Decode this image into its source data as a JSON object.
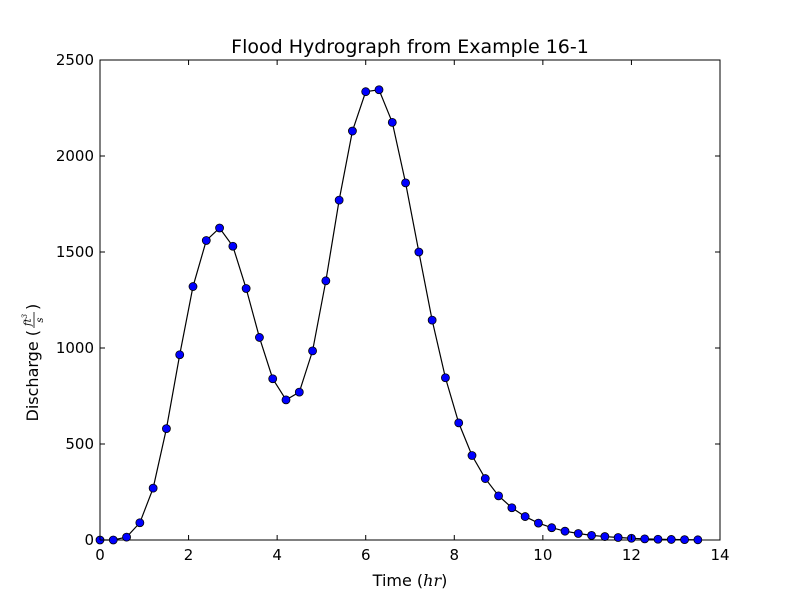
{
  "chart_data": {
    "type": "line",
    "title": "Flood Hydrograph from Example 16-1",
    "xlabel": {
      "prefix": "Time (",
      "math": "hr",
      "suffix": ")"
    },
    "ylabel": {
      "prefix": "Discharge (",
      "num": "ft",
      "exp": "3",
      "den": "s",
      "suffix": ")"
    },
    "xlim": [
      0,
      14
    ],
    "ylim": [
      0,
      2500
    ],
    "xticks": [
      "0",
      "2",
      "4",
      "6",
      "8",
      "10",
      "12",
      "14"
    ],
    "yticks": [
      "0",
      "500",
      "1000",
      "1500",
      "2000",
      "2500"
    ],
    "grid": false,
    "series": [
      {
        "line_color": "#000000",
        "marker_color": "#0000ff",
        "x": [
          0,
          0.3,
          0.6,
          0.9,
          1.2,
          1.5,
          1.8,
          2.1,
          2.4,
          2.7,
          3.0,
          3.3,
          3.6,
          3.9,
          4.2,
          4.5,
          4.8,
          5.1,
          5.4,
          5.7,
          6.0,
          6.3,
          6.6,
          6.9,
          7.2,
          7.5,
          7.8,
          8.1,
          8.4,
          8.7,
          9.0,
          9.3,
          9.6,
          9.9,
          10.2,
          10.5,
          10.8,
          11.1,
          11.4,
          11.7,
          12.0,
          12.3,
          12.6,
          12.9,
          13.2,
          13.5
        ],
        "y": [
          0,
          0,
          15,
          90,
          270,
          580,
          965,
          1320,
          1560,
          1625,
          1530,
          1310,
          1055,
          840,
          730,
          770,
          985,
          1350,
          1770,
          2130,
          2335,
          2345,
          2175,
          1860,
          1500,
          1145,
          845,
          610,
          440,
          320,
          230,
          168,
          122,
          88,
          64,
          46,
          34,
          24,
          18,
          13,
          9,
          6,
          4,
          3,
          2,
          1
        ]
      }
    ]
  }
}
